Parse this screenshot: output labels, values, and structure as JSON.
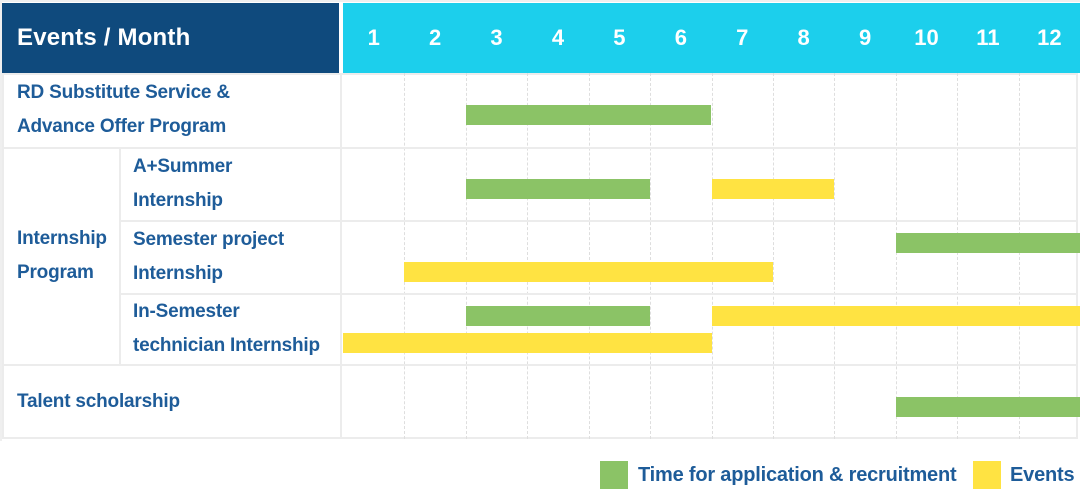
{
  "colors": {
    "navy": "#0f4a7d",
    "cyan": "#1ccfec",
    "green": "#8bc366",
    "yellow": "#ffe342",
    "text_blue": "#1e5c99",
    "grid": "#ececec",
    "grid_dash": "#dedede"
  },
  "chart_data": {
    "type": "gantt",
    "corner_label": "Events / Month",
    "x": {
      "label": "Month",
      "categories": [
        "1",
        "2",
        "3",
        "4",
        "5",
        "6",
        "7",
        "8",
        "9",
        "10",
        "11",
        "12"
      ],
      "range": [
        1,
        12
      ]
    },
    "group_cell": {
      "label_lines": [
        "Internship",
        "Program"
      ]
    },
    "rows": [
      {
        "label_lines": [
          "RD Substitute Service &",
          "Advance Offer Program"
        ],
        "group": null,
        "bars": [
          {
            "series": "Time for application & recruitment",
            "color_key": "green",
            "start_month": 3,
            "end_month": 6,
            "lane": "center"
          }
        ]
      },
      {
        "label_lines": [
          "A+Summer",
          "Internship"
        ],
        "group": "Internship Program",
        "bars": [
          {
            "series": "Time for application & recruitment",
            "color_key": "green",
            "start_month": 3,
            "end_month": 5,
            "lane": "center"
          },
          {
            "series": "Events",
            "color_key": "yellow",
            "start_month": 7,
            "end_month": 8,
            "lane": "center"
          }
        ]
      },
      {
        "label_lines": [
          "Semester project",
          "Internship"
        ],
        "group": "Internship Program",
        "bars": [
          {
            "series": "Time for application & recruitment",
            "color_key": "green",
            "start_month": 10,
            "end_month": 12,
            "lane": "upper"
          },
          {
            "series": "Events",
            "color_key": "yellow",
            "start_month": 2,
            "end_month": 7,
            "lane": "lower"
          }
        ]
      },
      {
        "label_lines": [
          "In-Semester",
          "technician Internship"
        ],
        "group": "Internship Program",
        "bars": [
          {
            "series": "Time for application & recruitment",
            "color_key": "green",
            "start_month": 3,
            "end_month": 5,
            "lane": "upper"
          },
          {
            "series": "Events",
            "color_key": "yellow",
            "start_month": 7,
            "end_month": 12,
            "lane": "upper"
          },
          {
            "series": "Events",
            "color_key": "yellow",
            "start_month": 1,
            "end_month": 6,
            "lane": "lower"
          }
        ]
      },
      {
        "label_lines": [
          "Talent scholarship"
        ],
        "group": null,
        "bars": [
          {
            "series": "Time for application & recruitment",
            "color_key": "green",
            "start_month": 10,
            "end_month": 12,
            "lane": "center"
          }
        ]
      }
    ],
    "legend": [
      {
        "color_key": "green",
        "label": "Time for application & recruitment"
      },
      {
        "color_key": "yellow",
        "label": "Events"
      }
    ]
  }
}
